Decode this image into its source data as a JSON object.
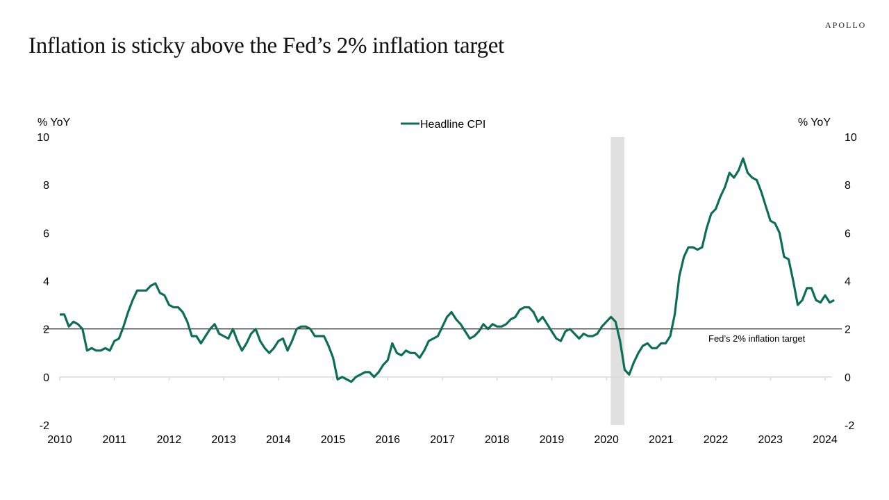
{
  "brand": "APOLLO",
  "title": "Inflation is sticky above the Fed’s 2% inflation target",
  "chart_data": {
    "type": "line",
    "title": "Inflation is sticky above the Fed’s 2% inflation target",
    "ylabel_left": "% YoY",
    "ylabel_right": "% YoY",
    "ylim": [
      -2,
      10
    ],
    "yticks": [
      -2,
      0,
      2,
      4,
      6,
      8,
      10
    ],
    "xlim": [
      2010,
      2024.2
    ],
    "xticks": [
      "2010",
      "2011",
      "2012",
      "2013",
      "2014",
      "2015",
      "2016",
      "2017",
      "2018",
      "2019",
      "2020",
      "2021",
      "2022",
      "2023",
      "2024"
    ],
    "legend": {
      "position": "top-center",
      "entries": [
        "Headline CPI"
      ]
    },
    "series": [
      {
        "name": "Headline CPI",
        "color": "#0b6e55",
        "start": "2010-01",
        "frequency": "monthly",
        "values": [
          2.6,
          2.6,
          2.1,
          2.3,
          2.2,
          2.0,
          1.1,
          1.2,
          1.1,
          1.1,
          1.2,
          1.1,
          1.5,
          1.6,
          2.1,
          2.7,
          3.2,
          3.6,
          3.6,
          3.6,
          3.8,
          3.9,
          3.5,
          3.4,
          3.0,
          2.9,
          2.9,
          2.7,
          2.3,
          1.7,
          1.7,
          1.4,
          1.7,
          2.0,
          2.2,
          1.8,
          1.7,
          1.6,
          2.0,
          1.5,
          1.1,
          1.4,
          1.8,
          2.0,
          1.5,
          1.2,
          1.0,
          1.2,
          1.5,
          1.6,
          1.1,
          1.5,
          2.0,
          2.1,
          2.1,
          2.0,
          1.7,
          1.7,
          1.7,
          1.3,
          0.8,
          -0.1,
          0.0,
          -0.1,
          -0.2,
          0.0,
          0.1,
          0.2,
          0.2,
          0.0,
          0.2,
          0.5,
          0.7,
          1.4,
          1.0,
          0.9,
          1.1,
          1.0,
          1.0,
          0.8,
          1.1,
          1.5,
          1.6,
          1.7,
          2.1,
          2.5,
          2.7,
          2.4,
          2.2,
          1.9,
          1.6,
          1.7,
          1.9,
          2.2,
          2.0,
          2.2,
          2.1,
          2.1,
          2.2,
          2.4,
          2.5,
          2.8,
          2.9,
          2.9,
          2.7,
          2.3,
          2.5,
          2.2,
          1.9,
          1.6,
          1.5,
          1.9,
          2.0,
          1.8,
          1.6,
          1.8,
          1.7,
          1.7,
          1.8,
          2.1,
          2.3,
          2.5,
          2.3,
          1.5,
          0.3,
          0.1,
          0.6,
          1.0,
          1.3,
          1.4,
          1.2,
          1.2,
          1.4,
          1.4,
          1.7,
          2.6,
          4.2,
          5.0,
          5.4,
          5.4,
          5.3,
          5.4,
          6.2,
          6.8,
          7.0,
          7.5,
          7.9,
          8.5,
          8.3,
          8.6,
          9.1,
          8.5,
          8.3,
          8.2,
          7.7,
          7.1,
          6.5,
          6.4,
          6.0,
          5.0,
          4.9,
          4.0,
          3.0,
          3.2,
          3.7,
          3.7,
          3.2,
          3.1,
          3.4,
          3.1,
          3.2
        ]
      }
    ],
    "reference_line": {
      "value": 2,
      "label": "Fed’s 2% inflation target"
    },
    "shaded_periods": [
      {
        "start": 2020.08,
        "end": 2020.33,
        "color": "#e0e0e0"
      }
    ]
  }
}
